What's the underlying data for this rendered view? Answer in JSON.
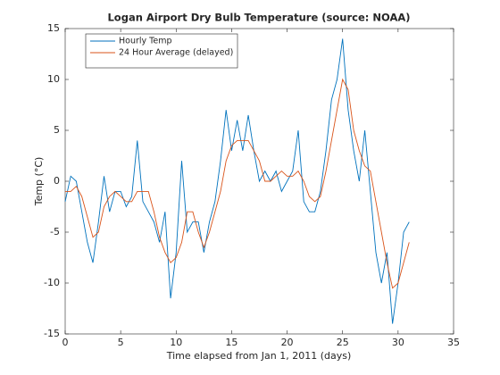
{
  "chart_data": {
    "type": "line",
    "title": "Logan Airport Dry Bulb Temperature (source: NOAA)",
    "xlabel": "Time elapsed from Jan 1, 2011 (days)",
    "ylabel": "Temp (°C)",
    "x": [
      0,
      0.5,
      1,
      1.5,
      2,
      2.5,
      3,
      3.5,
      4,
      4.5,
      5,
      5.5,
      6,
      6.5,
      7,
      7.5,
      8,
      8.5,
      9,
      9.5,
      10,
      10.5,
      11,
      11.5,
      12,
      12.5,
      13,
      13.5,
      14,
      14.5,
      15,
      15.5,
      16,
      16.5,
      17,
      17.5,
      18,
      18.5,
      19,
      19.5,
      20,
      20.5,
      21,
      21.5,
      22,
      22.5,
      23,
      23.5,
      24,
      24.5,
      25,
      25.5,
      26,
      26.5,
      27,
      27.5,
      28,
      28.5,
      29,
      29.5,
      30,
      30.5,
      31
    ],
    "series": [
      {
        "name": "Hourly Temp",
        "color": "#0072bd",
        "values": [
          -2,
          0.5,
          0,
          -3,
          -6,
          -8,
          -4,
          0.5,
          -3,
          -1,
          -1,
          -2.5,
          -1.5,
          4,
          -2,
          -3,
          -4,
          -6,
          -3,
          -11.5,
          -7,
          2,
          -5,
          -4,
          -4,
          -7,
          -4,
          -2,
          2,
          7,
          3,
          6,
          3,
          6.5,
          3,
          0,
          1,
          0,
          1,
          -1,
          0,
          1,
          5,
          -2,
          -3,
          -3,
          -1,
          3,
          8,
          10,
          14,
          7,
          3,
          0,
          5,
          -1,
          -7,
          -10,
          -7,
          -14,
          -10,
          -5,
          -4
        ]
      },
      {
        "name": "24 Hour Average (delayed)",
        "color": "#d95319",
        "values": [
          -1,
          -1,
          -0.5,
          -1.5,
          -3.5,
          -5.5,
          -5,
          -2.5,
          -1.5,
          -1,
          -1.5,
          -2,
          -2,
          -1,
          -1,
          -1,
          -3,
          -5.5,
          -7,
          -8,
          -7.5,
          -6,
          -3,
          -3,
          -5,
          -6.5,
          -5,
          -3,
          -1,
          2,
          3.5,
          4,
          4,
          4,
          3,
          2,
          0,
          0,
          0.5,
          1,
          0.5,
          0.5,
          1,
          0,
          -1.5,
          -2,
          -1.5,
          1,
          4,
          7,
          10,
          9,
          5,
          3,
          1.5,
          1,
          -2,
          -5,
          -8,
          -10.5,
          -10,
          -8,
          -6
        ]
      }
    ],
    "xlim": [
      0,
      35
    ],
    "xticks": [
      0,
      5,
      10,
      15,
      20,
      25,
      30,
      35
    ],
    "ylim": [
      -15,
      15
    ],
    "yticks": [
      -15,
      -10,
      -5,
      0,
      5,
      10,
      15
    ],
    "legend": "northwest"
  }
}
